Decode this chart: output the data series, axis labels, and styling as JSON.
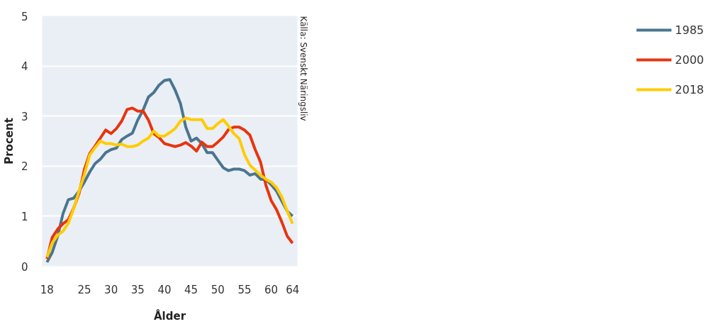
{
  "chart_data": {
    "type": "line",
    "xlabel": "Ålder",
    "ylabel": "Procent",
    "x": [
      18,
      19,
      20,
      21,
      22,
      23,
      24,
      25,
      26,
      27,
      28,
      29,
      30,
      31,
      32,
      33,
      34,
      35,
      36,
      37,
      38,
      39,
      40,
      41,
      42,
      43,
      44,
      45,
      46,
      47,
      48,
      49,
      50,
      51,
      52,
      53,
      54,
      55,
      56,
      57,
      58,
      59,
      60,
      61,
      62,
      63,
      64
    ],
    "series": [
      {
        "name": "1985",
        "color": "#4a7590",
        "values": [
          0.08,
          0.28,
          0.6,
          1.05,
          1.33,
          1.36,
          1.5,
          1.68,
          1.88,
          2.05,
          2.14,
          2.27,
          2.33,
          2.36,
          2.53,
          2.6,
          2.66,
          2.92,
          3.12,
          3.38,
          3.47,
          3.62,
          3.71,
          3.73,
          3.52,
          3.25,
          2.78,
          2.5,
          2.56,
          2.45,
          2.27,
          2.27,
          2.12,
          1.97,
          1.91,
          1.94,
          1.94,
          1.91,
          1.82,
          1.85,
          1.74,
          1.73,
          1.63,
          1.5,
          1.3,
          1.1,
          1.0
        ]
      },
      {
        "name": "2000",
        "color": "#e8340f",
        "values": [
          0.15,
          0.58,
          0.74,
          0.85,
          0.93,
          1.16,
          1.45,
          1.93,
          2.25,
          2.4,
          2.56,
          2.72,
          2.65,
          2.75,
          2.9,
          3.13,
          3.16,
          3.1,
          3.1,
          2.92,
          2.65,
          2.57,
          2.45,
          2.42,
          2.39,
          2.42,
          2.47,
          2.4,
          2.3,
          2.48,
          2.39,
          2.39,
          2.48,
          2.58,
          2.73,
          2.78,
          2.78,
          2.72,
          2.62,
          2.33,
          2.08,
          1.62,
          1.31,
          1.13,
          0.88,
          0.6,
          0.46
        ]
      },
      {
        "name": "2018",
        "color": "#ffcc00",
        "values": [
          0.18,
          0.47,
          0.62,
          0.7,
          0.86,
          1.15,
          1.5,
          1.83,
          2.22,
          2.37,
          2.5,
          2.45,
          2.45,
          2.42,
          2.44,
          2.39,
          2.39,
          2.42,
          2.5,
          2.56,
          2.7,
          2.6,
          2.6,
          2.67,
          2.75,
          2.9,
          2.96,
          2.93,
          2.93,
          2.93,
          2.75,
          2.75,
          2.85,
          2.93,
          2.8,
          2.65,
          2.55,
          2.23,
          2.02,
          1.92,
          1.82,
          1.74,
          1.68,
          1.57,
          1.38,
          1.1,
          0.85
        ]
      }
    ],
    "xlim": [
      17.1,
      64.9
    ],
    "ylim": [
      0,
      5
    ],
    "xticks": [
      18,
      25,
      30,
      35,
      40,
      45,
      50,
      55,
      60,
      64
    ],
    "yticks": [
      0,
      1,
      2,
      3,
      4,
      5
    ],
    "grid": "y",
    "legend": "right",
    "line_style": "solid",
    "annotations": [
      "Källa: Svenskt Näringsliv"
    ]
  }
}
